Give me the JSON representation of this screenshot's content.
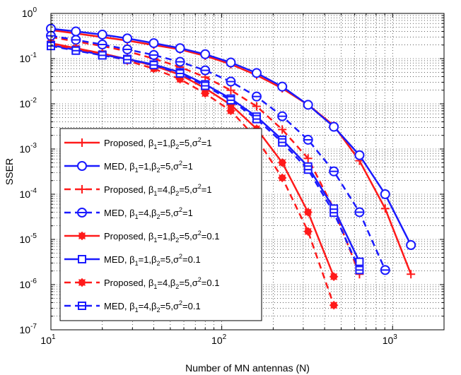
{
  "chart_data": {
    "type": "line",
    "xlabel": "Number of MN antennas (N)",
    "ylabel": "SSER",
    "xscale": "log",
    "yscale": "log",
    "xlim": [
      10,
      2000
    ],
    "ylim": [
      1e-07,
      1
    ],
    "x_ticks": [
      {
        "base": "10",
        "exp": "1",
        "value": 10
      },
      {
        "base": "10",
        "exp": "2",
        "value": 100
      },
      {
        "base": "10",
        "exp": "3",
        "value": 1000
      }
    ],
    "y_ticks": [
      {
        "base": "10",
        "exp": "0",
        "value": 1
      },
      {
        "base": "10",
        "exp": "-1",
        "value": 0.1
      },
      {
        "base": "10",
        "exp": "-2",
        "value": 0.01
      },
      {
        "base": "10",
        "exp": "-3",
        "value": 0.001
      },
      {
        "base": "10",
        "exp": "-4",
        "value": 0.0001
      },
      {
        "base": "10",
        "exp": "-5",
        "value": 1e-05
      },
      {
        "base": "10",
        "exp": "-6",
        "value": 1e-06
      },
      {
        "base": "10",
        "exp": "-7",
        "value": 1e-07
      }
    ],
    "grid": true,
    "legend_position": "bottom-left",
    "series": [
      {
        "legend": {
          "method": "Proposed",
          "b1": "1",
          "b2": "5",
          "s2": "1"
        },
        "color": "#ff1a1a",
        "dash": "solid",
        "marker": "plus",
        "x": [
          10,
          14,
          20,
          28,
          40,
          57,
          80,
          113,
          160,
          226,
          320,
          453,
          640,
          905,
          1280
        ],
        "y": [
          0.43,
          0.36,
          0.3,
          0.25,
          0.2,
          0.16,
          0.115,
          0.075,
          0.043,
          0.022,
          0.0095,
          0.0033,
          0.00055,
          4.8e-05,
          1.7e-06
        ]
      },
      {
        "legend": {
          "method": "MED",
          "b1": "1",
          "b2": "5",
          "s2": "1"
        },
        "color": "#1a1aff",
        "dash": "solid",
        "marker": "circle",
        "x": [
          10,
          14,
          20,
          28,
          40,
          57,
          80,
          113,
          160,
          226,
          320,
          453,
          640,
          905,
          1280
        ],
        "y": [
          0.46,
          0.4,
          0.34,
          0.28,
          0.22,
          0.17,
          0.125,
          0.082,
          0.048,
          0.024,
          0.0095,
          0.0031,
          0.00073,
          0.0001,
          7.5e-06
        ]
      },
      {
        "legend": {
          "method": "Proposed",
          "b1": "4",
          "b2": "5",
          "s2": "1"
        },
        "color": "#ff1a1a",
        "dash": "dashed",
        "marker": "plus",
        "x": [
          10,
          14,
          20,
          28,
          40,
          57,
          80,
          113,
          160,
          226,
          320,
          453,
          640
        ],
        "y": [
          0.3,
          0.24,
          0.19,
          0.145,
          0.1,
          0.065,
          0.039,
          0.02,
          0.0088,
          0.0027,
          0.00062,
          4.7e-05,
          1.7e-06
        ]
      },
      {
        "legend": {
          "method": "MED",
          "b1": "4",
          "b2": "5",
          "s2": "1"
        },
        "color": "#1a1aff",
        "dash": "dashed",
        "marker": "circle-minus",
        "x": [
          10,
          14,
          20,
          28,
          40,
          57,
          80,
          113,
          160,
          226,
          320,
          453,
          640,
          905
        ],
        "y": [
          0.32,
          0.26,
          0.205,
          0.16,
          0.12,
          0.085,
          0.055,
          0.031,
          0.0145,
          0.0053,
          0.0016,
          0.00032,
          4e-05,
          2.1e-06
        ]
      },
      {
        "legend": {
          "method": "Proposed",
          "b1": "1",
          "b2": "5",
          "s2": "0.1"
        },
        "color": "#ff1a1a",
        "dash": "solid",
        "marker": "star",
        "x": [
          10,
          14,
          20,
          28,
          40,
          57,
          80,
          113,
          160,
          226,
          320,
          453
        ],
        "y": [
          0.22,
          0.17,
          0.13,
          0.097,
          0.07,
          0.044,
          0.022,
          0.0095,
          0.0028,
          0.0005,
          4e-05,
          1.5e-06
        ]
      },
      {
        "legend": {
          "method": "MED",
          "b1": "1",
          "b2": "5",
          "s2": "0.1"
        },
        "color": "#1a1aff",
        "dash": "solid",
        "marker": "square",
        "x": [
          10,
          14,
          20,
          28,
          40,
          57,
          80,
          113,
          160,
          226,
          320,
          453,
          640
        ],
        "y": [
          0.2,
          0.155,
          0.122,
          0.098,
          0.074,
          0.05,
          0.027,
          0.013,
          0.0052,
          0.0016,
          0.00041,
          4.8e-05,
          3.2e-06
        ]
      },
      {
        "legend": {
          "method": "Proposed",
          "b1": "4",
          "b2": "5",
          "s2": "0.1"
        },
        "color": "#ff1a1a",
        "dash": "dashed",
        "marker": "star",
        "x": [
          10,
          14,
          20,
          28,
          40,
          57,
          80,
          113,
          160,
          226,
          320,
          453
        ],
        "y": [
          0.2,
          0.16,
          0.125,
          0.09,
          0.06,
          0.035,
          0.017,
          0.007,
          0.0017,
          0.00023,
          1.5e-05,
          3.5e-07
        ]
      },
      {
        "legend": {
          "method": "MED",
          "b1": "4",
          "b2": "5",
          "s2": "0.1"
        },
        "color": "#1a1aff",
        "dash": "dashed",
        "marker": "square-minus",
        "x": [
          10,
          14,
          20,
          28,
          40,
          57,
          80,
          113,
          160,
          226,
          320,
          453,
          640
        ],
        "y": [
          0.19,
          0.15,
          0.118,
          0.095,
          0.072,
          0.047,
          0.025,
          0.012,
          0.0046,
          0.0014,
          0.00035,
          3.9e-05,
          2.1e-06
        ]
      }
    ]
  }
}
